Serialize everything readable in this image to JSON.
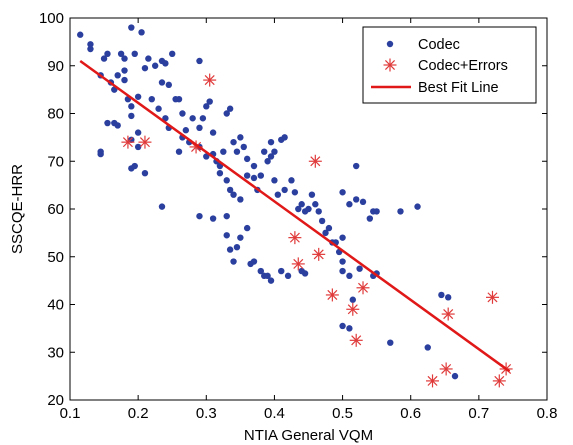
{
  "chart_data": {
    "type": "scatter",
    "xlabel": "NTIA General VQM",
    "ylabel": "SSCQE-HRR",
    "xlim": [
      0.1,
      0.8
    ],
    "ylim": [
      20,
      100
    ],
    "x_ticks": [
      "0.1",
      "0.2",
      "0.3",
      "0.4",
      "0.5",
      "0.6",
      "0.7",
      "0.8"
    ],
    "y_ticks": [
      "20",
      "30",
      "40",
      "50",
      "60",
      "70",
      "80",
      "90",
      "100"
    ],
    "grid": false,
    "legend_position": "top-right",
    "series": [
      {
        "name": "Codec",
        "marker": "dot",
        "color": "#2b3f9e",
        "points": [
          [
            0.115,
            96.5
          ],
          [
            0.13,
            94.5
          ],
          [
            0.13,
            93.5
          ],
          [
            0.145,
            88
          ],
          [
            0.15,
            91.5
          ],
          [
            0.155,
            92.5
          ],
          [
            0.16,
            86.5
          ],
          [
            0.165,
            85
          ],
          [
            0.17,
            88
          ],
          [
            0.175,
            92.5
          ],
          [
            0.18,
            91.5
          ],
          [
            0.18,
            89
          ],
          [
            0.19,
            98
          ],
          [
            0.205,
            97
          ],
          [
            0.195,
            92.5
          ],
          [
            0.21,
            89.5
          ],
          [
            0.215,
            91.5
          ],
          [
            0.225,
            90
          ],
          [
            0.235,
            91
          ],
          [
            0.24,
            90.5
          ],
          [
            0.25,
            92.5
          ],
          [
            0.235,
            86.5
          ],
          [
            0.245,
            86
          ],
          [
            0.22,
            83
          ],
          [
            0.18,
            87
          ],
          [
            0.185,
            83
          ],
          [
            0.19,
            81.5
          ],
          [
            0.2,
            83.5
          ],
          [
            0.155,
            78
          ],
          [
            0.165,
            78
          ],
          [
            0.17,
            77.5
          ],
          [
            0.19,
            79.5
          ],
          [
            0.2,
            76
          ],
          [
            0.19,
            74.5
          ],
          [
            0.2,
            73
          ],
          [
            0.19,
            68.5
          ],
          [
            0.195,
            69
          ],
          [
            0.21,
            67.5
          ],
          [
            0.145,
            72
          ],
          [
            0.145,
            71.5
          ],
          [
            0.23,
            81
          ],
          [
            0.24,
            79
          ],
          [
            0.245,
            77
          ],
          [
            0.255,
            83
          ],
          [
            0.26,
            83
          ],
          [
            0.265,
            80
          ],
          [
            0.27,
            76.5
          ],
          [
            0.26,
            72
          ],
          [
            0.265,
            75
          ],
          [
            0.275,
            74
          ],
          [
            0.28,
            79
          ],
          [
            0.29,
            77
          ],
          [
            0.295,
            79
          ],
          [
            0.3,
            81.5
          ],
          [
            0.305,
            82.5
          ],
          [
            0.31,
            76
          ],
          [
            0.29,
            91
          ],
          [
            0.29,
            73
          ],
          [
            0.3,
            71
          ],
          [
            0.31,
            71.5
          ],
          [
            0.315,
            70
          ],
          [
            0.32,
            69
          ],
          [
            0.32,
            67.5
          ],
          [
            0.325,
            72
          ],
          [
            0.33,
            80
          ],
          [
            0.335,
            81
          ],
          [
            0.34,
            74
          ],
          [
            0.345,
            72
          ],
          [
            0.33,
            66
          ],
          [
            0.335,
            64
          ],
          [
            0.34,
            63
          ],
          [
            0.35,
            62
          ],
          [
            0.35,
            75
          ],
          [
            0.355,
            73
          ],
          [
            0.36,
            70.5
          ],
          [
            0.37,
            69
          ],
          [
            0.36,
            67
          ],
          [
            0.37,
            66.5
          ],
          [
            0.375,
            64
          ],
          [
            0.38,
            67
          ],
          [
            0.385,
            72
          ],
          [
            0.39,
            70
          ],
          [
            0.395,
            74
          ],
          [
            0.395,
            71
          ],
          [
            0.4,
            72
          ],
          [
            0.41,
            74.5
          ],
          [
            0.415,
            75
          ],
          [
            0.4,
            66
          ],
          [
            0.405,
            63
          ],
          [
            0.415,
            64
          ],
          [
            0.425,
            66
          ],
          [
            0.43,
            63.5
          ],
          [
            0.435,
            60
          ],
          [
            0.44,
            61
          ],
          [
            0.445,
            59.5
          ],
          [
            0.45,
            60
          ],
          [
            0.455,
            63
          ],
          [
            0.46,
            61
          ],
          [
            0.465,
            59.5
          ],
          [
            0.47,
            57.5
          ],
          [
            0.475,
            55
          ],
          [
            0.48,
            56
          ],
          [
            0.485,
            53
          ],
          [
            0.49,
            53
          ],
          [
            0.5,
            54
          ],
          [
            0.5,
            63.5
          ],
          [
            0.51,
            61
          ],
          [
            0.52,
            69
          ],
          [
            0.52,
            62
          ],
          [
            0.53,
            61.5
          ],
          [
            0.54,
            58
          ],
          [
            0.545,
            59.5
          ],
          [
            0.55,
            59.5
          ],
          [
            0.585,
            59.5
          ],
          [
            0.61,
            60.5
          ],
          [
            0.235,
            60.5
          ],
          [
            0.29,
            58.5
          ],
          [
            0.31,
            58
          ],
          [
            0.33,
            58.5
          ],
          [
            0.33,
            54.5
          ],
          [
            0.335,
            51.5
          ],
          [
            0.34,
            49
          ],
          [
            0.345,
            52
          ],
          [
            0.35,
            54
          ],
          [
            0.36,
            56
          ],
          [
            0.365,
            48.5
          ],
          [
            0.37,
            49
          ],
          [
            0.38,
            47
          ],
          [
            0.385,
            46
          ],
          [
            0.39,
            46
          ],
          [
            0.395,
            45
          ],
          [
            0.41,
            47
          ],
          [
            0.42,
            46
          ],
          [
            0.44,
            47
          ],
          [
            0.445,
            46.5
          ],
          [
            0.495,
            51
          ],
          [
            0.5,
            49
          ],
          [
            0.5,
            47
          ],
          [
            0.51,
            46
          ],
          [
            0.525,
            47.5
          ],
          [
            0.545,
            46
          ],
          [
            0.55,
            46.5
          ],
          [
            0.5,
            35.5
          ],
          [
            0.51,
            35
          ],
          [
            0.515,
            41
          ],
          [
            0.57,
            32
          ],
          [
            0.625,
            31
          ],
          [
            0.645,
            42
          ],
          [
            0.655,
            41.5
          ],
          [
            0.665,
            25
          ]
        ]
      },
      {
        "name": "Codec+Errors",
        "marker": "asterisk",
        "color": "#e03a3a",
        "points": [
          [
            0.185,
            74
          ],
          [
            0.21,
            74
          ],
          [
            0.285,
            73
          ],
          [
            0.305,
            87
          ],
          [
            0.46,
            70
          ],
          [
            0.43,
            54
          ],
          [
            0.435,
            48.5
          ],
          [
            0.465,
            50.5
          ],
          [
            0.485,
            42
          ],
          [
            0.515,
            39
          ],
          [
            0.52,
            32.5
          ],
          [
            0.53,
            43.5
          ],
          [
            0.632,
            24
          ],
          [
            0.652,
            26.5
          ],
          [
            0.655,
            38
          ],
          [
            0.72,
            41.5
          ],
          [
            0.73,
            24
          ],
          [
            0.74,
            26.5
          ]
        ]
      }
    ],
    "best_fit": {
      "name": "Best Fit Line",
      "color": "#e01818",
      "from": [
        0.115,
        91
      ],
      "to": [
        0.745,
        26
      ]
    }
  }
}
